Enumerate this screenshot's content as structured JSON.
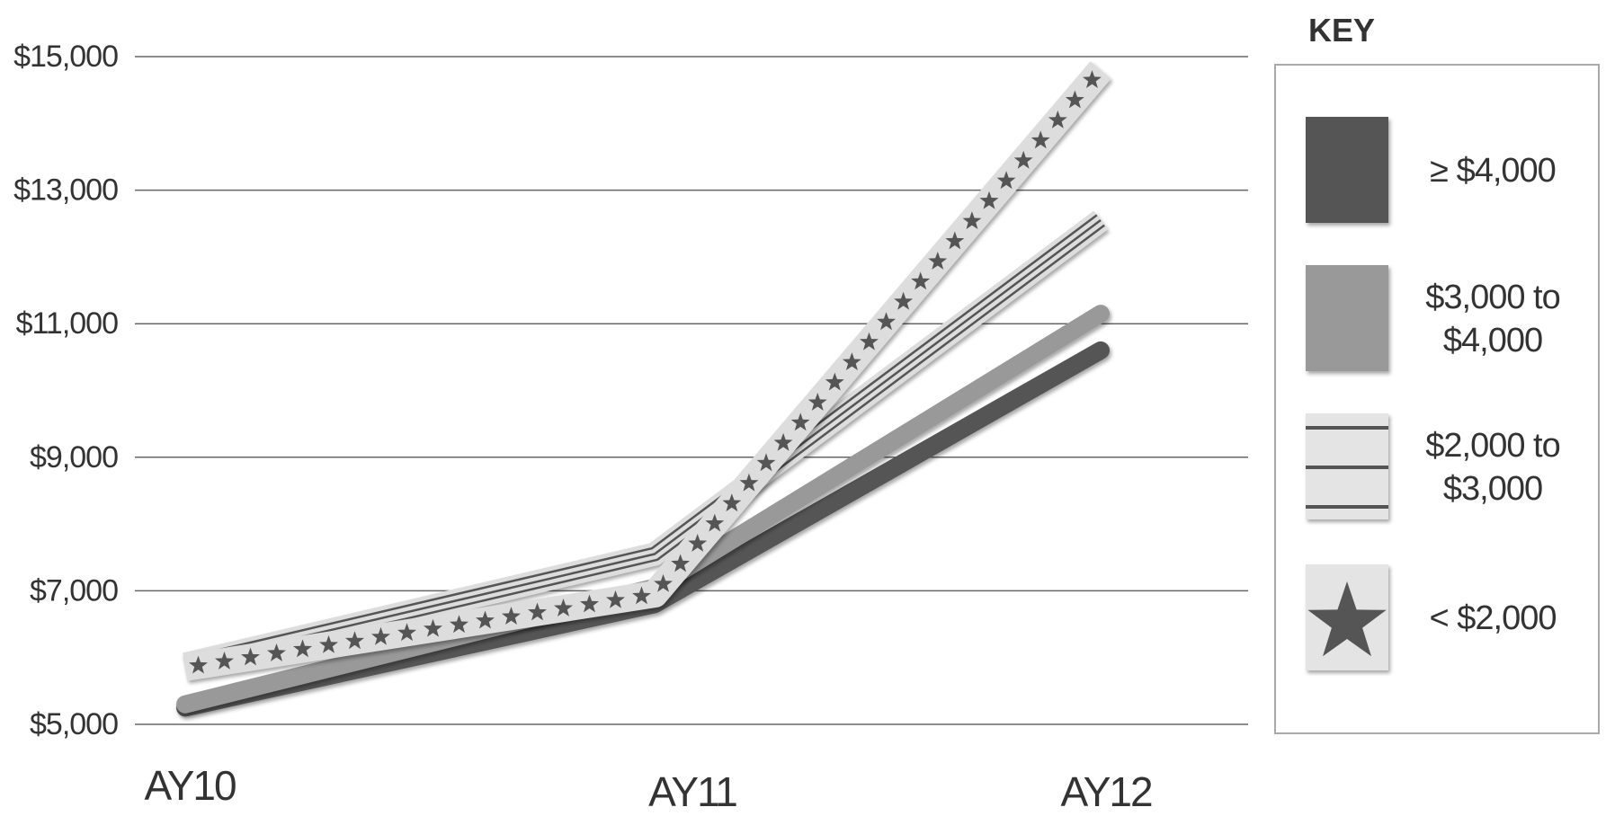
{
  "chart_data": {
    "type": "line",
    "categories": [
      "AY10",
      "AY11",
      "AY12"
    ],
    "ylim": [
      5000,
      15000
    ],
    "yticks": [
      "$5,000",
      "$7,000",
      "$9,000",
      "$11,000",
      "$13,000",
      "$15,000"
    ],
    "ytick_values": [
      5000,
      7000,
      9000,
      11000,
      13000,
      15000
    ],
    "grid": true,
    "legend_title": "KEY",
    "legend_position": "right",
    "series": [
      {
        "id": "ge4000",
        "name": "≥ $4,000",
        "name_lines": [
          "≥ $4,000"
        ],
        "pattern": "solid-dark",
        "color": "#555555",
        "values": [
          5250,
          6800,
          10600
        ]
      },
      {
        "id": "3000to4000",
        "name": "$3,000 to $4,000",
        "name_lines": [
          "$3,000 to",
          "$4,000"
        ],
        "pattern": "solid-light",
        "color": "#999999",
        "values": [
          5300,
          7050,
          11150
        ]
      },
      {
        "id": "2000to3000",
        "name": "$2,000 to $3,000",
        "name_lines": [
          "$2,000 to",
          "$3,000"
        ],
        "pattern": "stripes",
        "color": "#dddddd",
        "values": [
          5900,
          7550,
          12550
        ]
      },
      {
        "id": "lt2000",
        "name": "< $2,000",
        "name_lines": [
          "< $2,000"
        ],
        "pattern": "stars",
        "color": "#dddddd",
        "values": [
          5850,
          6950,
          14800
        ]
      }
    ]
  }
}
